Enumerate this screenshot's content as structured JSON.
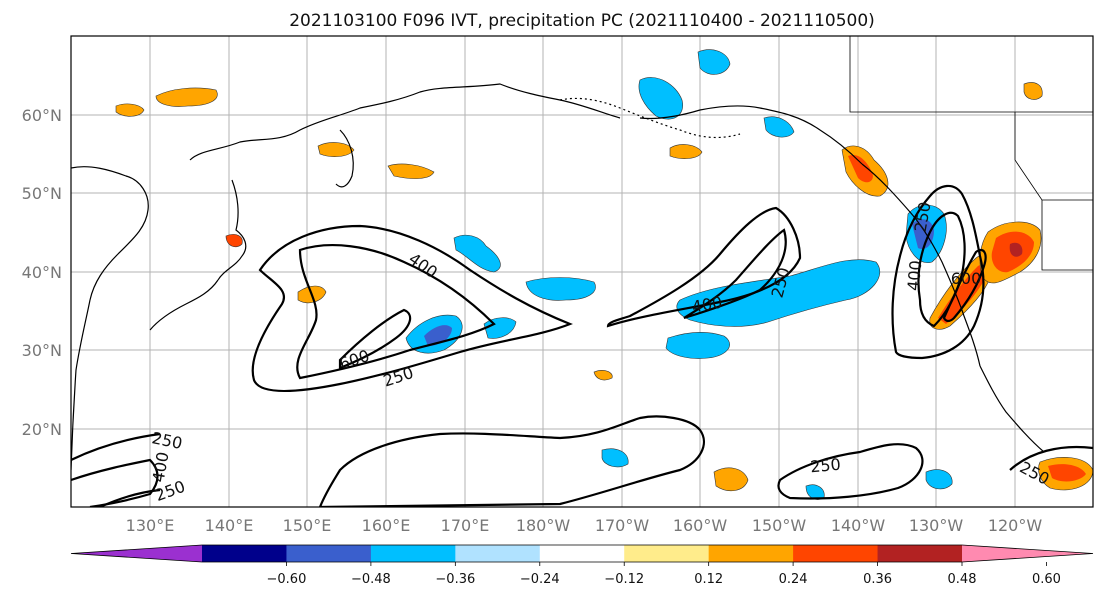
{
  "title": "2021103100 F096 IVT, precipitation PC (2021110400 - 2021110500)",
  "map": {
    "lat_labels": [
      "60°N",
      "50°N",
      "40°N",
      "30°N",
      "20°N"
    ],
    "lon_labels": [
      "130°E",
      "140°E",
      "150°E",
      "160°E",
      "170°E",
      "180°W",
      "170°W",
      "160°W",
      "150°W",
      "140°W",
      "130°W",
      "120°W"
    ],
    "contour_levels": [
      "250",
      "400",
      "600"
    ],
    "contour_labels": [
      {
        "text": "400",
        "name": "contour-label-400-west"
      },
      {
        "text": "600",
        "name": "contour-label-600-west"
      },
      {
        "text": "250",
        "name": "contour-label-250-west"
      },
      {
        "text": "400",
        "name": "contour-label-400-central"
      },
      {
        "text": "250",
        "name": "contour-label-250-central"
      },
      {
        "text": "250",
        "name": "contour-label-250-coast"
      },
      {
        "text": "400",
        "name": "contour-label-400-coast"
      },
      {
        "text": "600",
        "name": "contour-label-600-coast"
      },
      {
        "text": "250",
        "name": "contour-label-250-south-central"
      },
      {
        "text": "250",
        "name": "contour-label-250-southeast"
      },
      {
        "text": "250",
        "name": "contour-label-250-southwest-a"
      },
      {
        "text": "400",
        "name": "contour-label-400-southwest"
      },
      {
        "text": "250",
        "name": "contour-label-250-southwest-b"
      }
    ]
  },
  "colorbar": {
    "tick_labels": [
      "−0.60",
      "−0.48",
      "−0.36",
      "−0.24",
      "−0.12",
      "0.12",
      "0.24",
      "0.36",
      "0.48",
      "0.60"
    ],
    "colors": [
      "#9b30d0",
      "#00008b",
      "#3a5fcd",
      "#00bfff",
      "#b0e2ff",
      "#ffffff",
      "#ffec8b",
      "#ffa500",
      "#ff4500",
      "#b22222",
      "#ff8ab0"
    ]
  }
}
